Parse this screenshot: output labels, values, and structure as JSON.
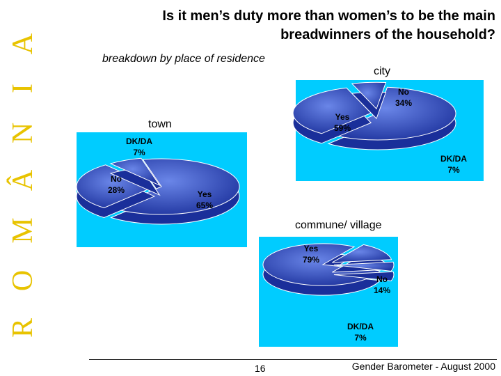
{
  "side_letters": [
    "R",
    "O",
    "M",
    "Â",
    "N",
    "I",
    "A"
  ],
  "title_line1": "Is it men’s duty more than women’s to be the main",
  "title_line2": "breadwinners of the household?",
  "subtitle": "breakdown by place of residence",
  "footer": {
    "page": "16",
    "text": "Gender Barometer - August 2000"
  },
  "colors": {
    "panel": "#00ccff",
    "pie_light": "#6a86e8",
    "pie_dark": "#1a2f9a",
    "side_letters": "#e8c300"
  },
  "chart_data": [
    {
      "type": "pie",
      "title": "city",
      "slices": [
        {
          "label": "Yes",
          "value": 59,
          "pct": "59%"
        },
        {
          "label": "No",
          "value": 34,
          "pct": "34%"
        },
        {
          "label": "DK/DA",
          "value": 7,
          "pct": "7%"
        }
      ]
    },
    {
      "type": "pie",
      "title": "town",
      "slices": [
        {
          "label": "Yes",
          "value": 65,
          "pct": "65%"
        },
        {
          "label": "No",
          "value": 28,
          "pct": "28%"
        },
        {
          "label": "DK/DA",
          "value": 7,
          "pct": "7%"
        }
      ]
    },
    {
      "type": "pie",
      "title": "commune/ village",
      "slices": [
        {
          "label": "Yes",
          "value": 79,
          "pct": "79%"
        },
        {
          "label": "No",
          "value": 14,
          "pct": "14%"
        },
        {
          "label": "DK/DA",
          "value": 7,
          "pct": "7%"
        }
      ]
    }
  ]
}
